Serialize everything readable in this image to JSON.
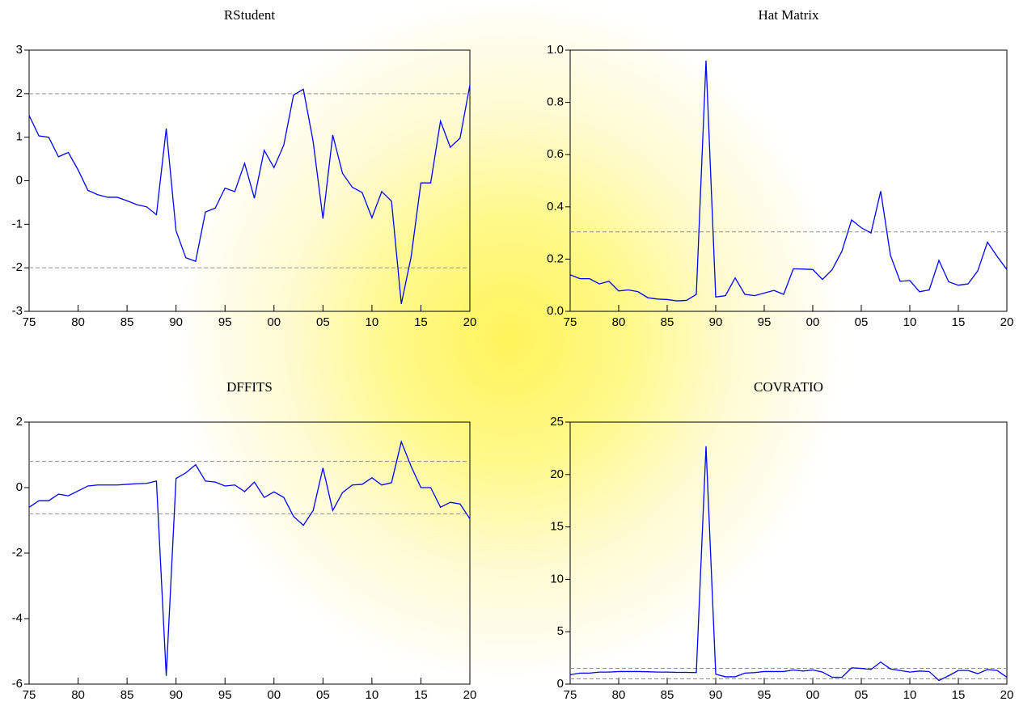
{
  "chart_data": [
    {
      "type": "line",
      "title": "RStudent",
      "color": "#0000ff",
      "x": [
        1975,
        1976,
        1977,
        1978,
        1979,
        1980,
        1981,
        1982,
        1983,
        1984,
        1985,
        1986,
        1987,
        1988,
        1989,
        1990,
        1991,
        1992,
        1993,
        1994,
        1995,
        1996,
        1997,
        1998,
        1999,
        2000,
        2001,
        2002,
        2003,
        2004,
        2005,
        2006,
        2007,
        2008,
        2009,
        2010,
        2011,
        2012,
        2013,
        2014,
        2015,
        2016,
        2017,
        2018,
        2019,
        2020
      ],
      "values": [
        1.5,
        1.03,
        1.0,
        0.55,
        0.65,
        0.25,
        -0.22,
        -0.32,
        -0.38,
        -0.38,
        -0.46,
        -0.55,
        -0.6,
        -0.78,
        1.2,
        -1.15,
        -1.77,
        -1.85,
        -0.72,
        -0.63,
        -0.17,
        -0.25,
        0.4,
        -0.4,
        0.7,
        0.3,
        0.82,
        1.97,
        2.1,
        0.9,
        -0.87,
        1.05,
        0.17,
        -0.15,
        -0.27,
        -0.85,
        -0.25,
        -0.47,
        -2.83,
        -1.75,
        -0.05,
        -0.05,
        1.37,
        0.77,
        0.98,
        2.2
      ],
      "xlim": [
        1975,
        2020
      ],
      "xticks": [
        {
          "value": 1975,
          "label": "75"
        },
        {
          "value": 1980,
          "label": "80"
        },
        {
          "value": 1985,
          "label": "85"
        },
        {
          "value": 1990,
          "label": "90"
        },
        {
          "value": 1995,
          "label": "95"
        },
        {
          "value": 2000,
          "label": "00"
        },
        {
          "value": 2005,
          "label": "05"
        },
        {
          "value": 2010,
          "label": "10"
        },
        {
          "value": 2015,
          "label": "15"
        },
        {
          "value": 2020,
          "label": "20"
        }
      ],
      "ylim": [
        -3,
        3
      ],
      "yticks": [
        -3,
        -2,
        -1,
        0,
        1,
        2,
        3
      ],
      "reference_lines": [
        2,
        -2
      ],
      "reference_color": "#909090"
    },
    {
      "type": "line",
      "title": "Hat Matrix",
      "color": "#0000ff",
      "x": [
        1975,
        1976,
        1977,
        1978,
        1979,
        1980,
        1981,
        1982,
        1983,
        1984,
        1985,
        1986,
        1987,
        1988,
        1989,
        1990,
        1991,
        1992,
        1993,
        1994,
        1995,
        1996,
        1997,
        1998,
        1999,
        2000,
        2001,
        2002,
        2003,
        2004,
        2005,
        2006,
        2007,
        2008,
        2009,
        2010,
        2011,
        2012,
        2013,
        2014,
        2015,
        2016,
        2017,
        2018,
        2019,
        2020
      ],
      "values": [
        0.14,
        0.125,
        0.125,
        0.105,
        0.115,
        0.078,
        0.082,
        0.075,
        0.052,
        0.047,
        0.045,
        0.04,
        0.042,
        0.065,
        0.96,
        0.055,
        0.06,
        0.128,
        0.065,
        0.06,
        0.07,
        0.08,
        0.065,
        0.163,
        0.162,
        0.16,
        0.122,
        0.16,
        0.23,
        0.35,
        0.32,
        0.3,
        0.46,
        0.215,
        0.115,
        0.118,
        0.075,
        0.082,
        0.195,
        0.113,
        0.1,
        0.105,
        0.155,
        0.265,
        0.21,
        0.16
      ],
      "xlim": [
        1975,
        2020
      ],
      "xticks": [
        {
          "value": 1975,
          "label": "75"
        },
        {
          "value": 1980,
          "label": "80"
        },
        {
          "value": 1985,
          "label": "85"
        },
        {
          "value": 1990,
          "label": "90"
        },
        {
          "value": 1995,
          "label": "95"
        },
        {
          "value": 2000,
          "label": "00"
        },
        {
          "value": 2005,
          "label": "05"
        },
        {
          "value": 2010,
          "label": "10"
        },
        {
          "value": 2015,
          "label": "15"
        },
        {
          "value": 2020,
          "label": "20"
        }
      ],
      "ylim": [
        0,
        1
      ],
      "yticks": [
        {
          "value": 0,
          "label": "0.0"
        },
        0.2,
        0.4,
        0.6,
        0.8,
        {
          "value": 1,
          "label": "1.0"
        }
      ],
      "reference_lines": [
        0.304
      ],
      "reference_color": "#909090"
    },
    {
      "type": "line",
      "title": "DFFITS",
      "color": "#0000ff",
      "x": [
        1975,
        1976,
        1977,
        1978,
        1979,
        1980,
        1981,
        1982,
        1983,
        1984,
        1985,
        1986,
        1987,
        1988,
        1989,
        1990,
        1991,
        1992,
        1993,
        1994,
        1995,
        1996,
        1997,
        1998,
        1999,
        2000,
        2001,
        2002,
        2003,
        2004,
        2005,
        2006,
        2007,
        2008,
        2009,
        2010,
        2011,
        2012,
        2013,
        2014,
        2015,
        2016,
        2017,
        2018,
        2019,
        2020
      ],
      "values": [
        -0.6,
        -0.4,
        -0.4,
        -0.2,
        -0.25,
        -0.1,
        0.05,
        0.08,
        0.08,
        0.08,
        0.1,
        0.12,
        0.13,
        0.2,
        -5.75,
        0.28,
        0.45,
        0.7,
        0.2,
        0.17,
        0.05,
        0.08,
        -0.12,
        0.17,
        -0.3,
        -0.13,
        -0.3,
        -0.88,
        -1.15,
        -0.7,
        0.6,
        -0.7,
        -0.15,
        0.08,
        0.1,
        0.3,
        0.08,
        0.15,
        1.4,
        0.65,
        0.0,
        0.0,
        -0.6,
        -0.45,
        -0.5,
        -0.95
      ],
      "xlim": [
        1975,
        2020
      ],
      "xticks": [
        {
          "value": 1975,
          "label": "75"
        },
        {
          "value": 1980,
          "label": "80"
        },
        {
          "value": 1985,
          "label": "85"
        },
        {
          "value": 1990,
          "label": "90"
        },
        {
          "value": 1995,
          "label": "95"
        },
        {
          "value": 2000,
          "label": "00"
        },
        {
          "value": 2005,
          "label": "05"
        },
        {
          "value": 2010,
          "label": "10"
        },
        {
          "value": 2015,
          "label": "15"
        },
        {
          "value": 2020,
          "label": "20"
        }
      ],
      "ylim": [
        -6,
        2
      ],
      "yticks": [
        -6,
        -4,
        -2,
        0,
        2
      ],
      "reference_lines": [
        0.8,
        -0.8
      ],
      "reference_color": "#909090"
    },
    {
      "type": "line",
      "title": "COVRATIO",
      "color": "#0000ff",
      "x": [
        1975,
        1976,
        1977,
        1978,
        1979,
        1980,
        1981,
        1982,
        1983,
        1984,
        1985,
        1986,
        1987,
        1988,
        1989,
        1990,
        1991,
        1992,
        1993,
        1994,
        1995,
        1996,
        1997,
        1998,
        1999,
        2000,
        2001,
        2002,
        2003,
        2004,
        2005,
        2006,
        2007,
        2008,
        2009,
        2010,
        2011,
        2012,
        2013,
        2014,
        2015,
        2016,
        2017,
        2018,
        2019,
        2020
      ],
      "values": [
        0.9,
        1.05,
        1.05,
        1.15,
        1.15,
        1.2,
        1.2,
        1.2,
        1.18,
        1.15,
        1.15,
        1.12,
        1.12,
        1.1,
        22.7,
        0.95,
        0.7,
        0.7,
        1.05,
        1.1,
        1.2,
        1.2,
        1.2,
        1.35,
        1.25,
        1.35,
        1.15,
        0.65,
        0.65,
        1.55,
        1.5,
        1.4,
        2.1,
        1.45,
        1.3,
        1.15,
        1.25,
        1.2,
        0.35,
        0.8,
        1.3,
        1.3,
        1.0,
        1.4,
        1.3,
        0.65
      ],
      "xlim": [
        1975,
        2020
      ],
      "xticks": [
        {
          "value": 1975,
          "label": "75"
        },
        {
          "value": 1980,
          "label": "80"
        },
        {
          "value": 1985,
          "label": "85"
        },
        {
          "value": 1990,
          "label": "90"
        },
        {
          "value": 1995,
          "label": "95"
        },
        {
          "value": 2000,
          "label": "00"
        },
        {
          "value": 2005,
          "label": "05"
        },
        {
          "value": 2010,
          "label": "10"
        },
        {
          "value": 2015,
          "label": "15"
        },
        {
          "value": 2020,
          "label": "20"
        }
      ],
      "ylim": [
        0,
        25
      ],
      "yticks": [
        0,
        5,
        10,
        15,
        20,
        25
      ],
      "reference_lines": [
        1.5,
        0.5
      ],
      "reference_color": "#909090"
    }
  ]
}
